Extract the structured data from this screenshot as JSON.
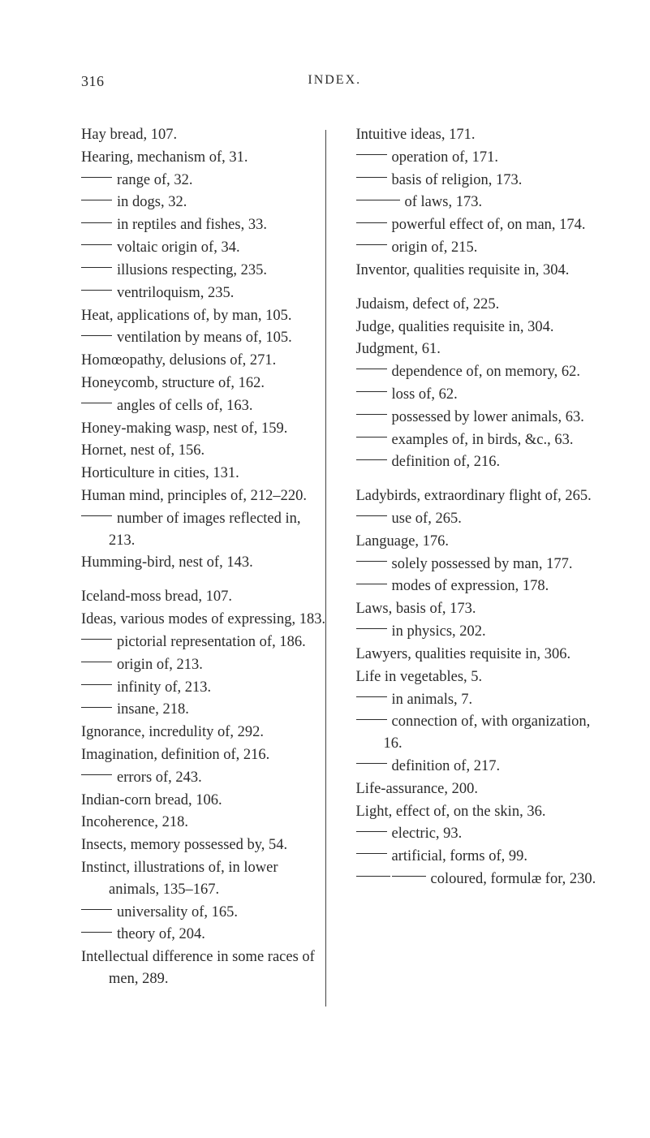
{
  "page_number": "316",
  "running_head": "INDEX.",
  "left_col": [
    {
      "t": "plain",
      "v": "Hay bread, 107."
    },
    {
      "t": "plain",
      "v": "Hearing, mechanism of, 31."
    },
    {
      "t": "dash",
      "d": "s",
      "v": "range of, 32."
    },
    {
      "t": "dash",
      "d": "s",
      "v": "in dogs, 32."
    },
    {
      "t": "dash",
      "d": "s",
      "v": "in reptiles and fishes, 33."
    },
    {
      "t": "dash",
      "d": "s",
      "v": "voltaic origin of, 34."
    },
    {
      "t": "dash",
      "d": "s",
      "v": "illusions respecting, 235."
    },
    {
      "t": "dash",
      "d": "s",
      "v": "ventriloquism, 235."
    },
    {
      "t": "plain",
      "v": "Heat, applications of, by man, 105."
    },
    {
      "t": "dash",
      "d": "s",
      "v": "ventilation by means of, 105."
    },
    {
      "t": "plain",
      "v": "Homœopathy, delusions of, 271."
    },
    {
      "t": "plain",
      "v": "Honeycomb, structure of, 162."
    },
    {
      "t": "dash",
      "d": "s",
      "v": "angles of cells of, 163."
    },
    {
      "t": "plain",
      "v": "Honey-making wasp, nest of, 159."
    },
    {
      "t": "plain",
      "v": "Hornet, nest of, 156."
    },
    {
      "t": "plain",
      "v": "Horticulture in cities, 131."
    },
    {
      "t": "plain",
      "v": "Human mind, principles of, 212–220."
    },
    {
      "t": "dash",
      "d": "s",
      "v": "number of images reflected in, 213."
    },
    {
      "t": "plain",
      "v": "Humming-bird, nest of, 143."
    },
    {
      "t": "gap"
    },
    {
      "t": "plain",
      "v": "Iceland-moss bread, 107."
    },
    {
      "t": "plain",
      "v": "Ideas, various modes of expressing, 183."
    },
    {
      "t": "dash",
      "d": "s",
      "v": "pictorial representation of, 186."
    },
    {
      "t": "dash",
      "d": "s",
      "v": "origin of, 213."
    },
    {
      "t": "dash",
      "d": "s",
      "v": "infinity of, 213."
    },
    {
      "t": "dash",
      "d": "s",
      "v": "insane, 218."
    },
    {
      "t": "plain",
      "v": "Ignorance, incredulity of, 292."
    },
    {
      "t": "plain",
      "v": "Imagination, definition of, 216."
    },
    {
      "t": "dash",
      "d": "s",
      "v": "errors of, 243."
    },
    {
      "t": "plain",
      "v": "Indian-corn bread, 106."
    },
    {
      "t": "plain",
      "v": "Incoherence, 218."
    },
    {
      "t": "plain",
      "v": "Insects, memory possessed by, 54."
    },
    {
      "t": "plain",
      "v": "Instinct, illustrations of, in lower animals, 135–167."
    },
    {
      "t": "dash",
      "d": "s",
      "v": "universality of, 165."
    },
    {
      "t": "dash",
      "d": "s",
      "v": "theory of, 204."
    },
    {
      "t": "plain",
      "v": "Intellectual difference in some races of men, 289."
    }
  ],
  "right_col": [
    {
      "t": "plain",
      "v": "Intuitive ideas, 171."
    },
    {
      "t": "dash",
      "d": "s",
      "v": "operation of, 171."
    },
    {
      "t": "dash",
      "d": "s",
      "v": "basis of religion, 173."
    },
    {
      "t": "dash",
      "d": "m",
      "v": "of laws, 173."
    },
    {
      "t": "dash",
      "d": "s",
      "v": "powerful effect of, on man, 174."
    },
    {
      "t": "dash",
      "d": "s",
      "v": "origin of, 215."
    },
    {
      "t": "plain",
      "v": "Inventor, qualities requisite in, 304."
    },
    {
      "t": "gap"
    },
    {
      "t": "plain",
      "v": "Judaism, defect of, 225."
    },
    {
      "t": "plain",
      "v": "Judge, qualities requisite in, 304."
    },
    {
      "t": "plain",
      "v": "Judgment, 61."
    },
    {
      "t": "dash",
      "d": "s",
      "v": "dependence of, on memory, 62."
    },
    {
      "t": "dash",
      "d": "s",
      "v": "loss of, 62."
    },
    {
      "t": "dash",
      "d": "s",
      "v": "possessed by lower animals, 63."
    },
    {
      "t": "dash",
      "d": "s",
      "v": "examples of, in birds, &c., 63."
    },
    {
      "t": "dash",
      "d": "s",
      "v": "definition of, 216."
    },
    {
      "t": "gap"
    },
    {
      "t": "plain",
      "v": "Ladybirds, extraordinary flight of, 265."
    },
    {
      "t": "dash",
      "d": "s",
      "v": "use of, 265."
    },
    {
      "t": "plain",
      "v": "Language, 176."
    },
    {
      "t": "dash",
      "d": "s",
      "v": "solely possessed by man, 177."
    },
    {
      "t": "dash",
      "d": "s",
      "v": "modes of expression, 178."
    },
    {
      "t": "plain",
      "v": "Laws, basis of, 173."
    },
    {
      "t": "dash",
      "d": "s",
      "v": "in physics, 202."
    },
    {
      "t": "plain",
      "v": "Lawyers, qualities requisite in, 306."
    },
    {
      "t": "plain",
      "v": "Life in vegetables, 5."
    },
    {
      "t": "dash",
      "d": "s",
      "v": "in animals, 7."
    },
    {
      "t": "dash",
      "d": "s",
      "v": "connection of, with organization, 16."
    },
    {
      "t": "dash",
      "d": "s",
      "v": "definition of, 217."
    },
    {
      "t": "plain",
      "v": "Life-assurance, 200."
    },
    {
      "t": "plain",
      "v": "Light, effect of, on the skin, 36."
    },
    {
      "t": "dash",
      "d": "s",
      "v": "electric, 93."
    },
    {
      "t": "dash",
      "d": "s",
      "v": "artificial, forms of, 99."
    },
    {
      "t": "dash",
      "d": "dd",
      "v": "coloured, formulæ for, 230."
    }
  ]
}
